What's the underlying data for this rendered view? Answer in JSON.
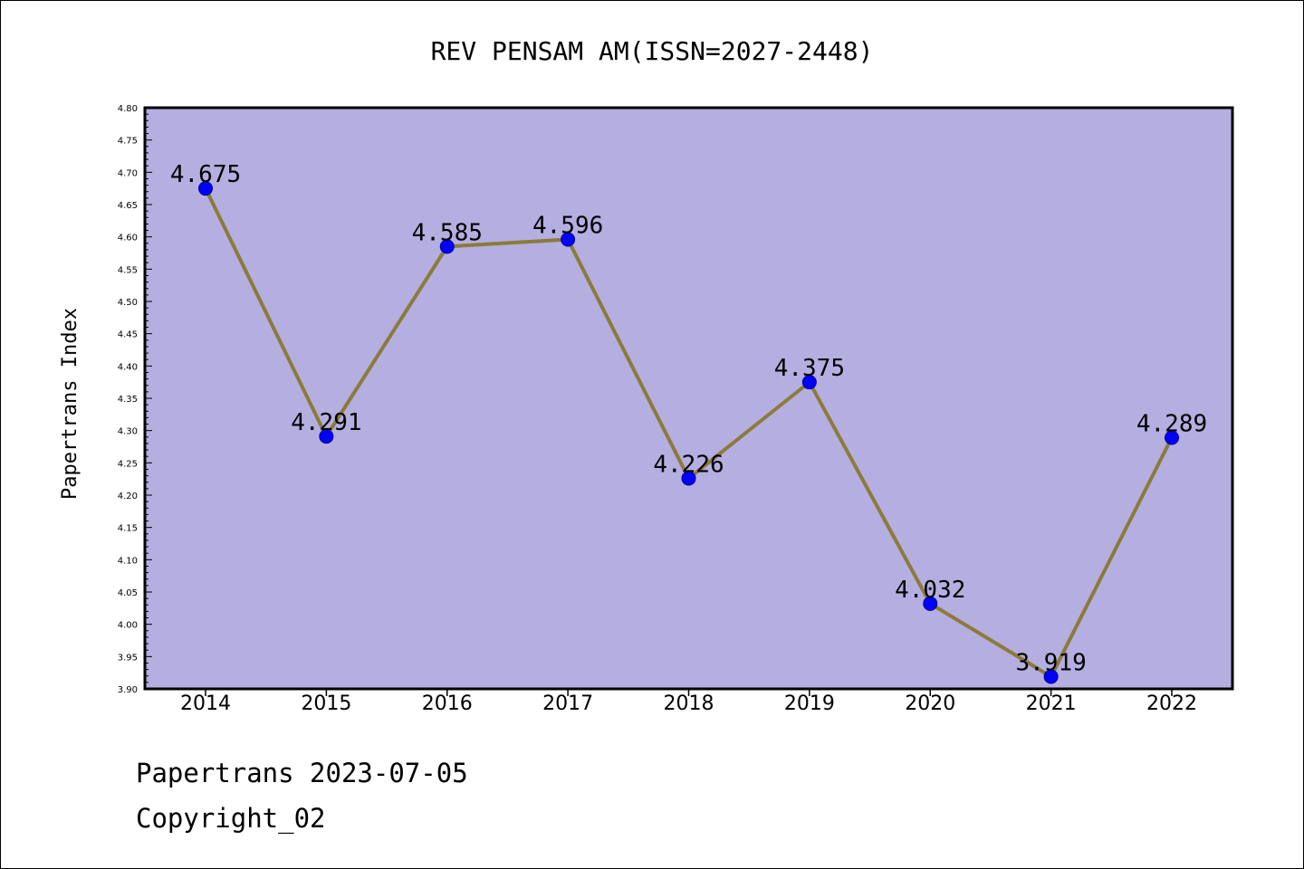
{
  "footer": {
    "date_line": "Papertrans 2023-07-05",
    "copyright": "Copyright_02"
  },
  "colors": {
    "plot_background": "#b5aee1",
    "line": "#8b7b3a",
    "marker": "#0000ff"
  },
  "chart_data": {
    "type": "line",
    "title": "REV PENSAM AM(ISSN=2027-2448)",
    "xlabel": "",
    "ylabel": "Papertrans Index",
    "categories": [
      "2014",
      "2015",
      "2016",
      "2017",
      "2018",
      "2019",
      "2020",
      "2021",
      "2022"
    ],
    "series": [
      {
        "values": [
          4.675,
          4.291,
          4.585,
          4.596,
          4.226,
          4.375,
          4.032,
          3.919,
          4.289
        ],
        "labels": [
          "4.675",
          "4.291",
          "4.585",
          "4.596",
          "4.226",
          "4.375",
          "4.032",
          "3.919",
          "4.289"
        ]
      }
    ],
    "ylim": [
      3.9,
      4.8
    ],
    "yticks": [
      "3.90",
      "3.95",
      "4.00",
      "4.05",
      "4.10",
      "4.15",
      "4.20",
      "4.25",
      "4.30",
      "4.35",
      "4.40",
      "4.45",
      "4.50",
      "4.55",
      "4.60",
      "4.65",
      "4.70",
      "4.75",
      "4.80"
    ],
    "grid": false,
    "legend": "none"
  }
}
